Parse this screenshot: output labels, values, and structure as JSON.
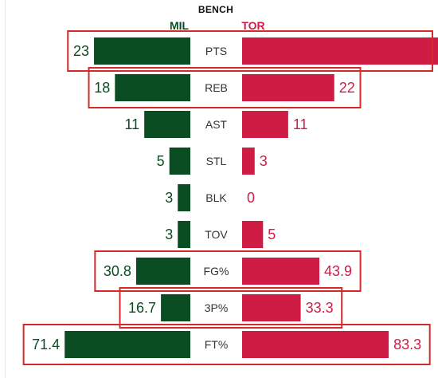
{
  "chart_data": {
    "type": "bar",
    "title": "BENCH",
    "teams": [
      {
        "name": "MIL",
        "color": "#0b4d22"
      },
      {
        "name": "TOR",
        "color": "#cf1c45"
      }
    ],
    "highlight_color": "#d42a2a",
    "categories": [
      "PTS",
      "REB",
      "AST",
      "STL",
      "BLK",
      "TOV",
      "FG%",
      "3P%",
      "FT%"
    ],
    "series": [
      {
        "name": "MIL",
        "values": [
          "23",
          "18",
          "11",
          "5",
          "3",
          "3",
          "30.8",
          "16.7",
          "71.4"
        ]
      },
      {
        "name": "TOR",
        "values": [
          "48",
          "22",
          "11",
          "3",
          "0",
          "5",
          "43.9",
          "33.3",
          "83.3"
        ]
      }
    ],
    "highlighted": [
      "PTS",
      "REB",
      "FG%",
      "3P%",
      "FT%"
    ]
  }
}
